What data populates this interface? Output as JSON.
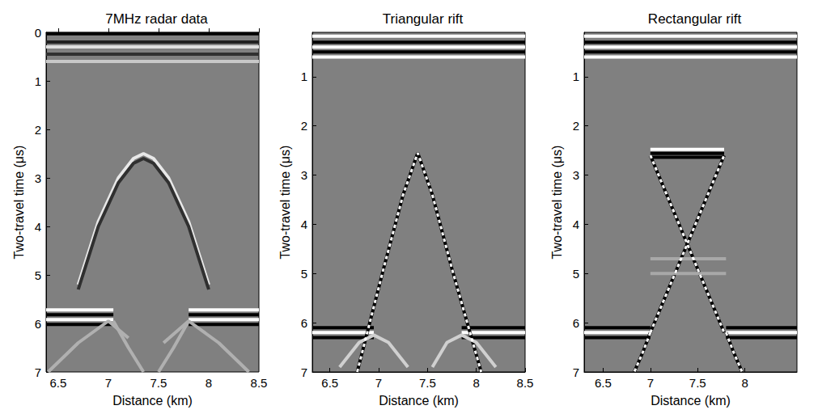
{
  "chart_data": [
    {
      "type": "line",
      "title": "7MHz radar data",
      "xlabel": "Distance (km)",
      "ylabel": "Two-travel time (μs)",
      "xlim": [
        6.38,
        8.5
      ],
      "xticks": [
        6.5,
        7,
        7.5,
        8,
        8.5
      ],
      "ylim": [
        0,
        7
      ],
      "yticks": [
        0,
        1,
        2,
        3,
        4,
        5,
        6,
        7
      ],
      "series": [
        {
          "color": "#000000",
          "x": [
            6.38,
            8.5
          ],
          "values": [
            0.03,
            0.03
          ]
        },
        {
          "color": "#202020",
          "x": [
            6.38,
            8.5
          ],
          "values": [
            0.2,
            0.2
          ]
        },
        {
          "color": "#e0e0e0",
          "x": [
            6.38,
            8.5
          ],
          "values": [
            0.3,
            0.3
          ]
        },
        {
          "color": "#303030",
          "x": [
            6.38,
            8.5
          ],
          "values": [
            0.45,
            0.45
          ]
        },
        {
          "color": "#c8c8c8",
          "x": [
            6.38,
            8.5
          ],
          "values": [
            0.6,
            0.6
          ]
        },
        {
          "color": "#ffffff",
          "x": [
            6.38,
            7.05
          ],
          "values": [
            5.72,
            5.72
          ]
        },
        {
          "color": "#000000",
          "x": [
            6.38,
            7.05
          ],
          "values": [
            5.82,
            5.82
          ]
        },
        {
          "color": "#ffffff",
          "x": [
            6.38,
            7.05
          ],
          "values": [
            5.92,
            5.92
          ]
        },
        {
          "color": "#000000",
          "x": [
            6.38,
            7.05
          ],
          "values": [
            6.02,
            6.02
          ]
        },
        {
          "color": "#ffffff",
          "x": [
            7.8,
            8.5
          ],
          "values": [
            5.72,
            5.72
          ]
        },
        {
          "color": "#000000",
          "x": [
            7.8,
            8.5
          ],
          "values": [
            5.82,
            5.82
          ]
        },
        {
          "color": "#ffffff",
          "x": [
            7.8,
            8.5
          ],
          "values": [
            5.92,
            5.92
          ]
        },
        {
          "color": "#000000",
          "x": [
            7.8,
            8.5
          ],
          "values": [
            6.02,
            6.02
          ]
        },
        {
          "color": "#e8e8e8",
          "x": [
            6.7,
            6.9,
            7.1,
            7.25,
            7.35,
            7.45,
            7.6,
            7.8,
            8.0
          ],
          "values": [
            5.2,
            3.9,
            3.0,
            2.6,
            2.5,
            2.6,
            3.0,
            3.9,
            5.2
          ]
        },
        {
          "color": "#303030",
          "x": [
            6.7,
            6.9,
            7.1,
            7.25,
            7.35,
            7.45,
            7.6,
            7.8,
            8.0
          ],
          "values": [
            5.3,
            4.0,
            3.1,
            2.7,
            2.6,
            2.7,
            3.1,
            4.0,
            5.3
          ]
        },
        {
          "color": "#b0b0b0",
          "x": [
            6.4,
            6.7,
            7.0,
            7.2
          ],
          "values": [
            7.0,
            6.4,
            5.95,
            6.3
          ]
        },
        {
          "color": "#b0b0b0",
          "x": [
            7.55,
            7.8,
            8.1,
            8.4
          ],
          "values": [
            6.4,
            5.95,
            6.4,
            7.0
          ]
        },
        {
          "color": "#b0b0b0",
          "x": [
            7.05,
            7.2,
            7.35
          ],
          "values": [
            5.95,
            6.5,
            7.0
          ]
        },
        {
          "color": "#b0b0b0",
          "x": [
            7.8,
            7.65,
            7.5
          ],
          "values": [
            5.95,
            6.5,
            7.0
          ]
        }
      ]
    },
    {
      "type": "line",
      "title": "Triangular rift",
      "xlabel": "Distance (km)",
      "ylabel": "Two-travel time (μs)",
      "xlim": [
        6.32,
        8.5
      ],
      "xticks": [
        6.5,
        7,
        7.5,
        8,
        8.5
      ],
      "ylim": [
        0.1,
        7
      ],
      "yticks": [
        1,
        2,
        3,
        4,
        5,
        6,
        7
      ],
      "series": [
        {
          "color": "#ffffff",
          "x": [
            6.32,
            8.5
          ],
          "values": [
            0.18,
            0.18
          ]
        },
        {
          "color": "#000000",
          "x": [
            6.32,
            8.5
          ],
          "values": [
            0.3,
            0.3
          ]
        },
        {
          "color": "#ffffff",
          "x": [
            6.32,
            8.5
          ],
          "values": [
            0.4,
            0.4
          ]
        },
        {
          "color": "#000000",
          "x": [
            6.32,
            8.5
          ],
          "values": [
            0.5,
            0.5
          ]
        },
        {
          "color": "#ffffff",
          "x": [
            6.32,
            8.5
          ],
          "values": [
            0.6,
            0.6
          ]
        },
        {
          "color": "#000000",
          "x": [
            6.32,
            6.95
          ],
          "values": [
            6.1,
            6.1
          ]
        },
        {
          "color": "#ffffff",
          "x": [
            6.32,
            6.95
          ],
          "values": [
            6.2,
            6.2
          ]
        },
        {
          "color": "#000000",
          "x": [
            6.32,
            6.95
          ],
          "values": [
            6.3,
            6.3
          ]
        },
        {
          "color": "#000000",
          "x": [
            7.85,
            8.5
          ],
          "values": [
            6.1,
            6.1
          ]
        },
        {
          "color": "#ffffff",
          "x": [
            7.85,
            8.5
          ],
          "values": [
            6.2,
            6.2
          ]
        },
        {
          "color": "#000000",
          "x": [
            7.85,
            8.5
          ],
          "values": [
            6.3,
            6.3
          ]
        },
        {
          "color": "#000000",
          "x": [
            6.78,
            7.05,
            7.25,
            7.4,
            7.55,
            7.75,
            8.05
          ],
          "values": [
            7.0,
            4.9,
            3.4,
            2.55,
            3.4,
            4.9,
            7.0
          ]
        },
        {
          "color": "#ffffff",
          "line_style": "dashed",
          "x": [
            6.78,
            7.05,
            7.25,
            7.4,
            7.55,
            7.75,
            8.05
          ],
          "values": [
            7.0,
            4.9,
            3.4,
            2.55,
            3.4,
            4.9,
            7.0
          ]
        },
        {
          "color": "#d0d0d0",
          "x": [
            6.6,
            6.8,
            6.95,
            7.1,
            7.3
          ],
          "values": [
            6.9,
            6.4,
            6.25,
            6.4,
            6.9
          ]
        },
        {
          "color": "#d0d0d0",
          "x": [
            7.55,
            7.7,
            7.85,
            8.0,
            8.2
          ],
          "values": [
            6.9,
            6.4,
            6.25,
            6.4,
            6.9
          ]
        }
      ]
    },
    {
      "type": "line",
      "title": "Rectangular rift",
      "xlabel": "Distance (km)",
      "ylabel": "Two-travel time (μs)",
      "xlim": [
        6.3,
        8.55
      ],
      "xticks": [
        6.5,
        7,
        7.5,
        8
      ],
      "ylim": [
        0.1,
        7
      ],
      "yticks": [
        1,
        2,
        3,
        4,
        5,
        6,
        7
      ],
      "series": [
        {
          "color": "#ffffff",
          "x": [
            6.3,
            8.55
          ],
          "values": [
            0.18,
            0.18
          ]
        },
        {
          "color": "#000000",
          "x": [
            6.3,
            8.55
          ],
          "values": [
            0.3,
            0.3
          ]
        },
        {
          "color": "#ffffff",
          "x": [
            6.3,
            8.55
          ],
          "values": [
            0.4,
            0.4
          ]
        },
        {
          "color": "#000000",
          "x": [
            6.3,
            8.55
          ],
          "values": [
            0.5,
            0.5
          ]
        },
        {
          "color": "#ffffff",
          "x": [
            6.3,
            8.55
          ],
          "values": [
            0.6,
            0.6
          ]
        },
        {
          "color": "#ffffff",
          "x": [
            7.0,
            7.78
          ],
          "values": [
            2.48,
            2.48
          ]
        },
        {
          "color": "#000000",
          "x": [
            7.0,
            7.78
          ],
          "values": [
            2.56,
            2.56
          ]
        },
        {
          "color": "#000000",
          "x": [
            7.0,
            7.78
          ],
          "values": [
            2.64,
            2.64
          ]
        },
        {
          "color": "#000000",
          "x": [
            7.0,
            7.78
          ],
          "values": [
            6.2,
            2.6
          ]
        },
        {
          "color": "#ffffff",
          "line_style": "dashed",
          "x": [
            7.0,
            7.78
          ],
          "values": [
            6.2,
            2.6
          ]
        },
        {
          "color": "#000000",
          "x": [
            7.0,
            7.78
          ],
          "values": [
            2.6,
            6.2
          ]
        },
        {
          "color": "#ffffff",
          "line_style": "dashed",
          "x": [
            7.0,
            7.78
          ],
          "values": [
            2.6,
            6.2
          ]
        },
        {
          "color": "#a8a8a8",
          "x": [
            7.0,
            7.8
          ],
          "values": [
            4.7,
            4.7
          ]
        },
        {
          "color": "#a8a8a8",
          "x": [
            7.0,
            7.8
          ],
          "values": [
            5.0,
            5.0
          ]
        },
        {
          "color": "#000000",
          "x": [
            6.3,
            7.0
          ],
          "values": [
            6.1,
            6.1
          ]
        },
        {
          "color": "#ffffff",
          "x": [
            6.3,
            7.0
          ],
          "values": [
            6.2,
            6.2
          ]
        },
        {
          "color": "#000000",
          "x": [
            6.3,
            7.0
          ],
          "values": [
            6.3,
            6.3
          ]
        },
        {
          "color": "#000000",
          "x": [
            7.8,
            8.55
          ],
          "values": [
            6.1,
            6.1
          ]
        },
        {
          "color": "#ffffff",
          "x": [
            7.8,
            8.55
          ],
          "values": [
            6.2,
            6.2
          ]
        },
        {
          "color": "#000000",
          "x": [
            7.8,
            8.55
          ],
          "values": [
            6.3,
            6.3
          ]
        },
        {
          "color": "#000000",
          "x": [
            7.0,
            6.92,
            6.83
          ],
          "values": [
            6.2,
            6.6,
            7.0
          ]
        },
        {
          "color": "#ffffff",
          "line_style": "dashed",
          "x": [
            7.0,
            6.92,
            6.83
          ],
          "values": [
            6.2,
            6.6,
            7.0
          ]
        },
        {
          "color": "#000000",
          "x": [
            7.8,
            7.88,
            7.97
          ],
          "values": [
            6.2,
            6.6,
            7.0
          ]
        },
        {
          "color": "#ffffff",
          "line_style": "dashed",
          "x": [
            7.8,
            7.88,
            7.97
          ],
          "values": [
            6.2,
            6.6,
            7.0
          ]
        }
      ]
    }
  ]
}
